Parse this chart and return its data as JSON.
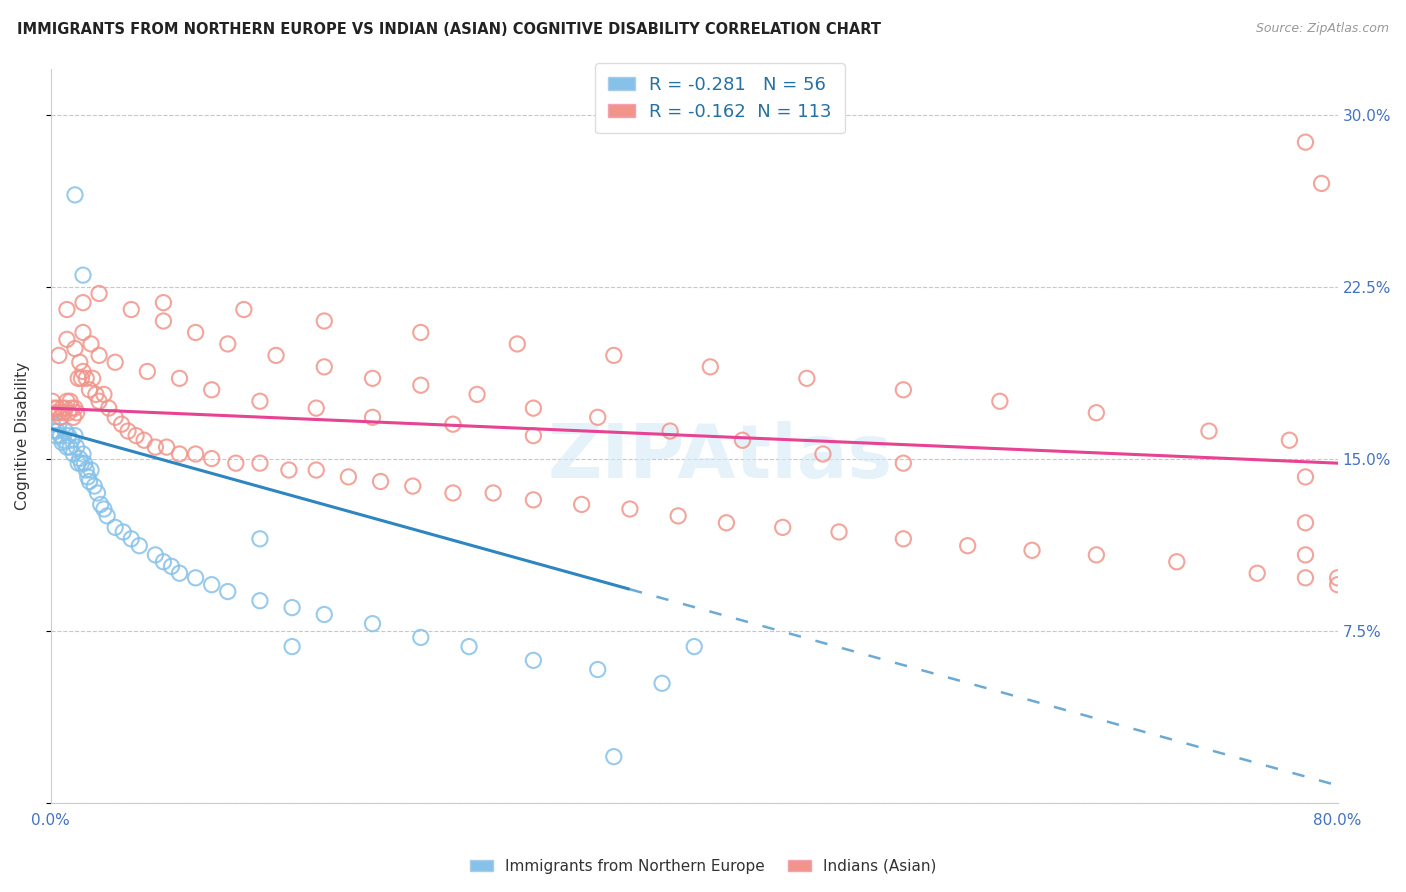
{
  "title": "IMMIGRANTS FROM NORTHERN EUROPE VS INDIAN (ASIAN) COGNITIVE DISABILITY CORRELATION CHART",
  "source": "Source: ZipAtlas.com",
  "ylabel": "Cognitive Disability",
  "xlim": [
    0.0,
    0.8
  ],
  "ylim": [
    0.0,
    0.32
  ],
  "blue_R": -0.281,
  "blue_N": 56,
  "pink_R": -0.162,
  "pink_N": 113,
  "blue_color": "#85C1E9",
  "pink_color": "#F1948A",
  "blue_line_color": "#2E86C1",
  "pink_line_color": "#E84393",
  "blue_line_start_y": 0.163,
  "blue_line_end_x": 0.36,
  "blue_line_end_y": 0.093,
  "pink_line_start_y": 0.172,
  "pink_line_end_x": 0.8,
  "pink_line_end_y": 0.148,
  "blue_x": [
    0.001,
    0.002,
    0.003,
    0.004,
    0.005,
    0.006,
    0.007,
    0.008,
    0.009,
    0.01,
    0.011,
    0.012,
    0.013,
    0.014,
    0.015,
    0.016,
    0.017,
    0.018,
    0.019,
    0.02,
    0.021,
    0.022,
    0.023,
    0.024,
    0.025,
    0.027,
    0.029,
    0.031,
    0.033,
    0.035,
    0.04,
    0.045,
    0.05,
    0.055,
    0.065,
    0.07,
    0.075,
    0.08,
    0.09,
    0.1,
    0.11,
    0.13,
    0.15,
    0.17,
    0.2,
    0.23,
    0.26,
    0.3,
    0.34,
    0.38,
    0.015,
    0.02,
    0.13,
    0.15,
    0.35,
    0.4
  ],
  "blue_y": [
    0.165,
    0.162,
    0.16,
    0.162,
    0.165,
    0.16,
    0.157,
    0.158,
    0.162,
    0.155,
    0.16,
    0.155,
    0.158,
    0.152,
    0.16,
    0.155,
    0.148,
    0.15,
    0.148,
    0.152,
    0.148,
    0.145,
    0.142,
    0.14,
    0.145,
    0.138,
    0.135,
    0.13,
    0.128,
    0.125,
    0.12,
    0.118,
    0.115,
    0.112,
    0.108,
    0.105,
    0.103,
    0.1,
    0.098,
    0.095,
    0.092,
    0.088,
    0.085,
    0.082,
    0.078,
    0.072,
    0.068,
    0.062,
    0.058,
    0.052,
    0.265,
    0.23,
    0.115,
    0.068,
    0.02,
    0.068
  ],
  "pink_x": [
    0.001,
    0.002,
    0.003,
    0.004,
    0.005,
    0.006,
    0.007,
    0.008,
    0.009,
    0.01,
    0.011,
    0.012,
    0.013,
    0.014,
    0.015,
    0.016,
    0.017,
    0.018,
    0.019,
    0.02,
    0.022,
    0.024,
    0.026,
    0.028,
    0.03,
    0.033,
    0.036,
    0.04,
    0.044,
    0.048,
    0.053,
    0.058,
    0.065,
    0.072,
    0.08,
    0.09,
    0.1,
    0.115,
    0.13,
    0.148,
    0.165,
    0.185,
    0.205,
    0.225,
    0.25,
    0.275,
    0.3,
    0.33,
    0.36,
    0.39,
    0.42,
    0.455,
    0.49,
    0.53,
    0.57,
    0.61,
    0.65,
    0.7,
    0.75,
    0.78,
    0.005,
    0.01,
    0.015,
    0.02,
    0.025,
    0.03,
    0.04,
    0.06,
    0.08,
    0.1,
    0.13,
    0.165,
    0.2,
    0.25,
    0.3,
    0.01,
    0.02,
    0.03,
    0.05,
    0.07,
    0.09,
    0.11,
    0.14,
    0.17,
    0.2,
    0.23,
    0.265,
    0.3,
    0.34,
    0.385,
    0.43,
    0.48,
    0.53,
    0.07,
    0.12,
    0.17,
    0.23,
    0.29,
    0.35,
    0.41,
    0.47,
    0.53,
    0.59,
    0.65,
    0.72,
    0.77,
    0.78,
    0.79,
    0.8,
    0.8,
    0.78,
    0.78,
    0.78
  ],
  "pink_y": [
    0.175,
    0.172,
    0.17,
    0.172,
    0.17,
    0.168,
    0.172,
    0.17,
    0.172,
    0.175,
    0.17,
    0.175,
    0.172,
    0.168,
    0.172,
    0.17,
    0.185,
    0.192,
    0.185,
    0.188,
    0.185,
    0.18,
    0.185,
    0.178,
    0.175,
    0.178,
    0.172,
    0.168,
    0.165,
    0.162,
    0.16,
    0.158,
    0.155,
    0.155,
    0.152,
    0.152,
    0.15,
    0.148,
    0.148,
    0.145,
    0.145,
    0.142,
    0.14,
    0.138,
    0.135,
    0.135,
    0.132,
    0.13,
    0.128,
    0.125,
    0.122,
    0.12,
    0.118,
    0.115,
    0.112,
    0.11,
    0.108,
    0.105,
    0.1,
    0.098,
    0.195,
    0.202,
    0.198,
    0.205,
    0.2,
    0.195,
    0.192,
    0.188,
    0.185,
    0.18,
    0.175,
    0.172,
    0.168,
    0.165,
    0.16,
    0.215,
    0.218,
    0.222,
    0.215,
    0.21,
    0.205,
    0.2,
    0.195,
    0.19,
    0.185,
    0.182,
    0.178,
    0.172,
    0.168,
    0.162,
    0.158,
    0.152,
    0.148,
    0.218,
    0.215,
    0.21,
    0.205,
    0.2,
    0.195,
    0.19,
    0.185,
    0.18,
    0.175,
    0.17,
    0.162,
    0.158,
    0.288,
    0.27,
    0.098,
    0.095,
    0.142,
    0.122,
    0.108
  ]
}
